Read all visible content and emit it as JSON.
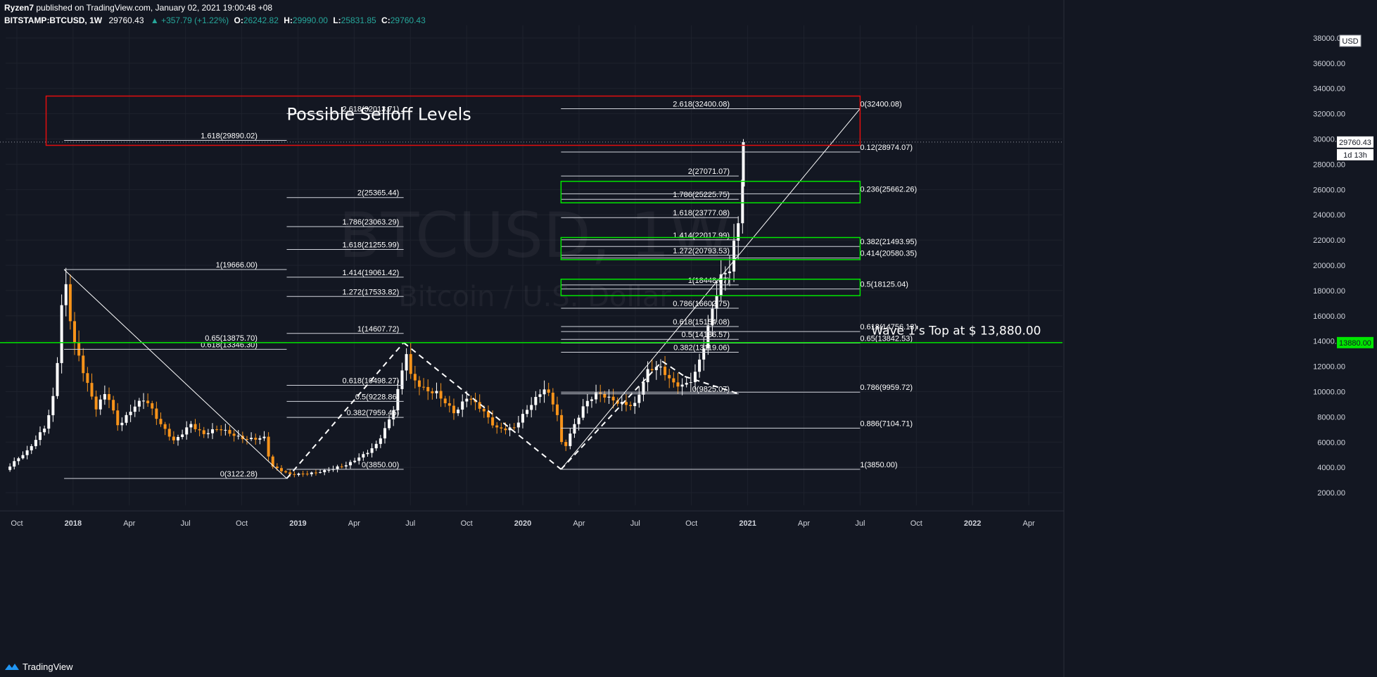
{
  "header": {
    "line1_user": "Ryzen7",
    "line1_rest": " published on TradingView.com, January 02, 2021 19:00:48 +08",
    "symbol": "BITSTAMP:BTCUSD, 1W",
    "last": "29760.43",
    "change": "▲ +357.79 (+1.22%)",
    "o_label": "O:",
    "o_val": "26242.82",
    "h_label": "H:",
    "h_val": "29990.00",
    "l_label": "L:",
    "l_val": "25831.85",
    "c_label": "C:",
    "c_val": "29760.43"
  },
  "footer": {
    "brand": "TradingView"
  },
  "colors": {
    "background": "#131722",
    "grid": "#1e222d",
    "up": "#ffffff",
    "down": "#f7931a",
    "fib_line": "#d1d4dc",
    "red_box": "#e30e0e",
    "green_box": "#00e600",
    "green_line": "#00e600"
  },
  "chart_data": {
    "type": "candlestick",
    "watermark": "BTCUSD, 1W",
    "watermark_sub": "Bitcoin / U.S. Dollar",
    "currency_label": "USD",
    "ylim": [
      1000,
      39000
    ],
    "y_ticks": [
      "2000.00",
      "4000.00",
      "6000.00",
      "8000.00",
      "10000.00",
      "12000.00",
      "14000.00",
      "16000.00",
      "18000.00",
      "20000.00",
      "22000.00",
      "24000.00",
      "26000.00",
      "28000.00",
      "30000.00",
      "32000.00",
      "34000.00",
      "36000.00",
      "38000.00"
    ],
    "x_ticks": [
      {
        "label": "Oct",
        "x": 2017.75
      },
      {
        "label": "2018",
        "x": 2018.0
      },
      {
        "label": "Apr",
        "x": 2018.25
      },
      {
        "label": "Jul",
        "x": 2018.5
      },
      {
        "label": "Oct",
        "x": 2018.75
      },
      {
        "label": "2019",
        "x": 2019.0
      },
      {
        "label": "Apr",
        "x": 2019.25
      },
      {
        "label": "Jul",
        "x": 2019.5
      },
      {
        "label": "Oct",
        "x": 2019.75
      },
      {
        "label": "2020",
        "x": 2020.0
      },
      {
        "label": "Apr",
        "x": 2020.25
      },
      {
        "label": "Jul",
        "x": 2020.5
      },
      {
        "label": "Oct",
        "x": 2020.75
      },
      {
        "label": "2021",
        "x": 2021.0
      },
      {
        "label": "Apr",
        "x": 2021.25
      },
      {
        "label": "Jul",
        "x": 2021.5
      },
      {
        "label": "Oct",
        "x": 2021.75
      },
      {
        "label": "2022",
        "x": 2022.0
      },
      {
        "label": "Apr",
        "x": 2022.25
      }
    ],
    "xlim": [
      2017.7,
      2022.4
    ],
    "anchors": [
      [
        2017.7,
        3800
      ],
      [
        2017.8,
        5200
      ],
      [
        2017.88,
        7500
      ],
      [
        2017.92,
        10500
      ],
      [
        2017.96,
        19666
      ],
      [
        2018.0,
        14000
      ],
      [
        2018.05,
        11000
      ],
      [
        2018.1,
        8500
      ],
      [
        2018.15,
        10200
      ],
      [
        2018.2,
        7500
      ],
      [
        2018.27,
        8800
      ],
      [
        2018.32,
        9200
      ],
      [
        2018.38,
        7500
      ],
      [
        2018.45,
        6200
      ],
      [
        2018.52,
        7600
      ],
      [
        2018.58,
        6500
      ],
      [
        2018.65,
        6900
      ],
      [
        2018.75,
        6500
      ],
      [
        2018.85,
        6300
      ],
      [
        2018.88,
        4000
      ],
      [
        2018.96,
        3400
      ],
      [
        2019.03,
        3600
      ],
      [
        2019.15,
        3800
      ],
      [
        2019.22,
        4100
      ],
      [
        2019.3,
        5200
      ],
      [
        2019.35,
        6000
      ],
      [
        2019.42,
        8200
      ],
      [
        2019.46,
        11000
      ],
      [
        2019.48,
        13000
      ],
      [
        2019.5,
        11000
      ],
      [
        2019.55,
        10300
      ],
      [
        2019.62,
        10200
      ],
      [
        2019.7,
        8200
      ],
      [
        2019.75,
        9300
      ],
      [
        2019.82,
        8500
      ],
      [
        2019.88,
        7300
      ],
      [
        2019.96,
        7200
      ],
      [
        2020.05,
        9000
      ],
      [
        2020.1,
        10200
      ],
      [
        2020.15,
        8700
      ],
      [
        2020.18,
        5200
      ],
      [
        2020.2,
        6500
      ],
      [
        2020.27,
        8800
      ],
      [
        2020.33,
        9600
      ],
      [
        2020.4,
        9300
      ],
      [
        2020.5,
        9200
      ],
      [
        2020.55,
        11500
      ],
      [
        2020.6,
        11700
      ],
      [
        2020.67,
        10500
      ],
      [
        2020.72,
        10700
      ],
      [
        2020.76,
        11500
      ],
      [
        2020.8,
        13500
      ],
      [
        2020.84,
        16200
      ],
      [
        2020.88,
        18500
      ],
      [
        2020.92,
        19200
      ],
      [
        2020.96,
        23500
      ],
      [
        2020.99,
        29760
      ]
    ],
    "last_candle": {
      "x": 2021.0,
      "open": 26242.82,
      "high": 29990.0,
      "low": 25831.85,
      "close": 29760.43
    },
    "price_tags": [
      {
        "value": 29760.43,
        "text": "29760.43",
        "sub": "1d 13h"
      },
      {
        "value": 13880,
        "text": "13880.00"
      }
    ],
    "fib_sets": [
      {
        "name": "set1",
        "x_from": 2017.96,
        "x_to": 2018.95,
        "label_x": 2018.82,
        "levels": [
          {
            "label": "1.618(29890.02)",
            "price": 29890.02
          },
          {
            "label": "1(19666.00)",
            "price": 19666.0
          },
          {
            "label": "0.65(13875.70)",
            "price": 13875.7
          },
          {
            "label": "0.618(13346.30)",
            "price": 13346.3
          },
          {
            "label": "0(3122.28)",
            "price": 3122.28
          }
        ]
      },
      {
        "name": "set2",
        "x_from": 2018.95,
        "x_to": 2019.47,
        "label_x": 2019.45,
        "levels": [
          {
            "label": "2.618(32013.71)",
            "price": 32013.71
          },
          {
            "label": "2(25365.44)",
            "price": 25365.44
          },
          {
            "label": "1.786(23063.29)",
            "price": 23063.29
          },
          {
            "label": "1.618(21255.99)",
            "price": 21255.99
          },
          {
            "label": "1.414(19061.42)",
            "price": 19061.42
          },
          {
            "label": "1.272(17533.82)",
            "price": 17533.82
          },
          {
            "label": "1(14607.72)",
            "price": 14607.72
          },
          {
            "label": "0.618(10498.27)",
            "price": 10498.27
          },
          {
            "label": "0.5(9228.86)",
            "price": 9228.86
          },
          {
            "label": "0.382(7959.45)",
            "price": 7959.45
          },
          {
            "label": "0(3850.00)",
            "price": 3850.0
          }
        ]
      },
      {
        "name": "set3",
        "x_from": 2020.17,
        "x_to": 2020.96,
        "label_x": 2020.92,
        "levels": [
          {
            "label": "2.618(32400.08)",
            "price": 32400.08
          },
          {
            "label": "2(27071.07)",
            "price": 27071.07
          },
          {
            "label": "1.786(25225.75)",
            "price": 25225.75
          },
          {
            "label": "1.618(23777.08)",
            "price": 23777.08
          },
          {
            "label": "1.414(22017.99)",
            "price": 22017.99
          },
          {
            "label": "1.272(20793.53)",
            "price": 20793.53
          },
          {
            "label": "1(18448.07)",
            "price": 18448.07
          },
          {
            "label": "0.786(16602.75)",
            "price": 16602.75
          },
          {
            "label": "0.618(15154.08)",
            "price": 15154.08
          },
          {
            "label": "0.5(14136.57)",
            "price": 14136.57
          },
          {
            "label": "0.382(13119.06)",
            "price": 13119.06
          },
          {
            "label": "0(9825.07)",
            "price": 9825.07
          }
        ]
      },
      {
        "name": "set4",
        "x_from": 2020.17,
        "x_to": 2021.5,
        "label_x": 2021.5,
        "levels": [
          {
            "label": "0(32400.08)",
            "price": 32400.08
          },
          {
            "label": "0.12(28974.07)",
            "price": 28974.07
          },
          {
            "label": "0.236(25662.26)",
            "price": 25662.26
          },
          {
            "label": "0.382(21493.95)",
            "price": 21493.95
          },
          {
            "label": "0.414(20580.35)",
            "price": 20580.35
          },
          {
            "label": "0.5(18125.04)",
            "price": 18125.04
          },
          {
            "label": "0.618(14756.13)",
            "price": 14756.13
          },
          {
            "label": "0.65(13842.53)",
            "price": 13842.53
          },
          {
            "label": "0.786(9959.72)",
            "price": 9959.72
          },
          {
            "label": "0.886(7104.71)",
            "price": 7104.71
          },
          {
            "label": "1(3850.00)",
            "price": 3850.0
          }
        ]
      }
    ],
    "trend_lines": [
      {
        "from": [
          2017.96,
          19666
        ],
        "to": [
          2018.95,
          3122
        ],
        "style": "solid"
      },
      {
        "from": [
          2020.17,
          3850
        ],
        "to": [
          2021.5,
          32400
        ],
        "style": "solid"
      },
      {
        "from": [
          2018.95,
          3122
        ],
        "to": [
          2019.47,
          13880
        ],
        "style": "dashed"
      },
      {
        "from": [
          2019.47,
          13880
        ],
        "to": [
          2020.17,
          3850
        ],
        "style": "dashed"
      },
      {
        "from": [
          2020.17,
          3850
        ],
        "to": [
          2020.62,
          12400
        ],
        "style": "dashed"
      },
      {
        "from": [
          2020.62,
          12400
        ],
        "to": [
          2020.72,
          11200
        ],
        "style": "dashed"
      },
      {
        "from": [
          2020.72,
          11200
        ],
        "to": [
          2020.96,
          9825
        ],
        "style": "dashed"
      }
    ],
    "boxes": [
      {
        "name": "red-selloff-box",
        "x_from": 2017.88,
        "x_to": 2021.5,
        "y_from": 29500,
        "y_to": 33400,
        "color": "red"
      },
      {
        "name": "green-box-1",
        "x_from": 2020.17,
        "x_to": 2021.5,
        "y_from": 24950,
        "y_to": 26650,
        "color": "green"
      },
      {
        "name": "green-box-2",
        "x_from": 2020.17,
        "x_to": 2021.5,
        "y_from": 20450,
        "y_to": 22200,
        "color": "green"
      },
      {
        "name": "green-box-3",
        "x_from": 2020.17,
        "x_to": 2021.5,
        "y_from": 17600,
        "y_to": 18900,
        "color": "green"
      }
    ],
    "horizontal_line": {
      "price": 13880,
      "color": "green"
    },
    "annotations": [
      {
        "text": "Possible Selloff Levels",
        "x": 2018.95,
        "price": 31500,
        "size": "large"
      },
      {
        "text": "Wave 1's Top at $ 13,880.00",
        "x": 2021.55,
        "price": 14500,
        "size": "medium"
      }
    ]
  }
}
